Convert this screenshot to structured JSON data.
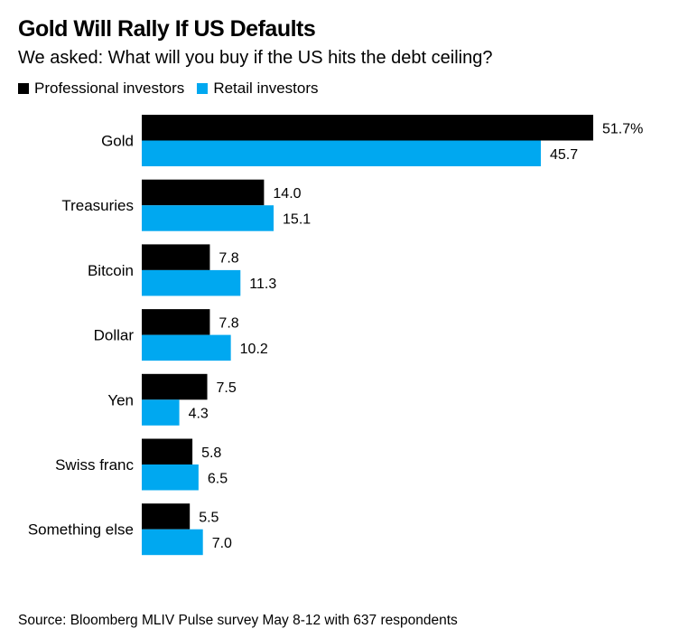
{
  "chart_data": {
    "type": "bar",
    "orientation": "horizontal",
    "title": "Gold Will Rally If US Defaults",
    "subtitle": "We asked: What will you buy if the US hits the debt ceiling?",
    "categories": [
      "Gold",
      "Treasuries",
      "Bitcoin",
      "Dollar",
      "Yen",
      "Swiss franc",
      "Something else"
    ],
    "series": [
      {
        "name": "Professional investors",
        "color": "#000000",
        "values": [
          51.7,
          14.0,
          7.8,
          7.8,
          7.5,
          5.8,
          5.5
        ],
        "labels": [
          "51.7%",
          "14.0",
          "7.8",
          "7.8",
          "7.5",
          "5.8",
          "5.5"
        ]
      },
      {
        "name": "Retail investors",
        "color": "#00a8f0",
        "values": [
          45.7,
          15.1,
          11.3,
          10.2,
          4.3,
          6.5,
          7.0
        ],
        "labels": [
          "45.7",
          "15.1",
          "11.3",
          "10.2",
          "4.3",
          "6.5",
          "7.0"
        ]
      }
    ],
    "xlabel": "",
    "ylabel": "",
    "xlim": [
      0,
      51.7
    ],
    "unit": "%",
    "grid": false,
    "legend_position": "top-left"
  },
  "source": "Source: Bloomberg MLIV Pulse survey May 8-12 with 637 respondents"
}
